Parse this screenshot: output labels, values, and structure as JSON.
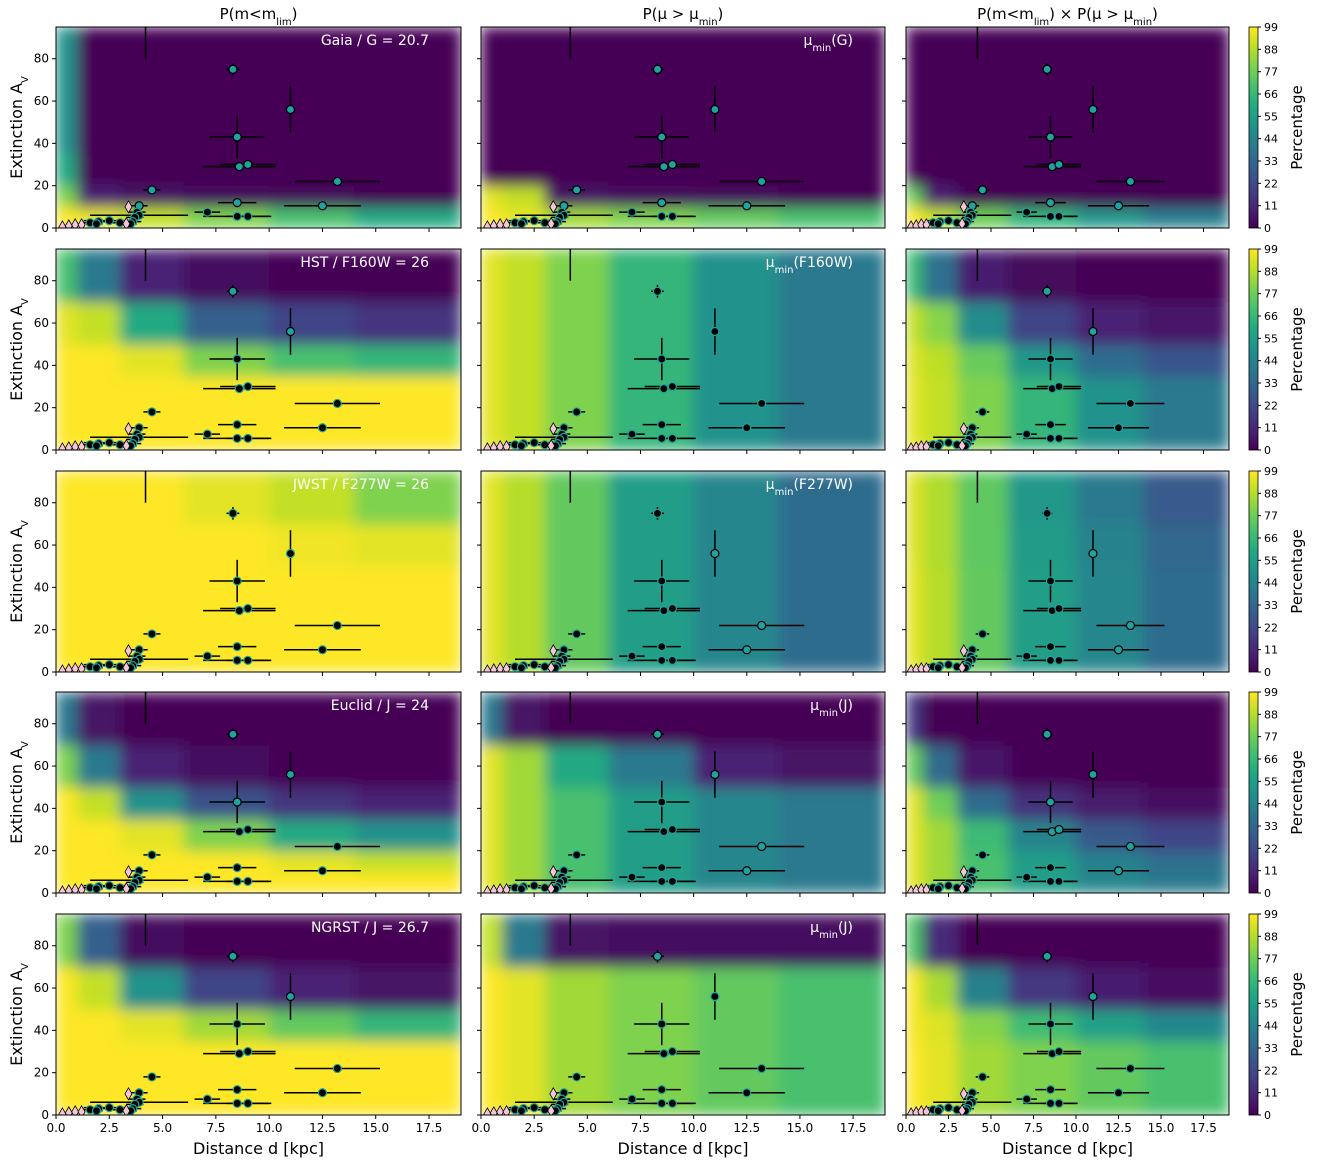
{
  "chart_data": {
    "type": "heatmap_grid",
    "column_titles": [
      [
        "P(m<m",
        "lim",
        ")"
      ],
      [
        "P(μ > μ",
        "min",
        ")"
      ],
      [
        "P(m<m",
        "lim",
        ") × P(μ > μ",
        "min",
        ")"
      ]
    ],
    "annotations": [
      [
        "Gaia / G = 20.7",
        [
          "μ",
          "min",
          "(G)"
        ]
      ],
      [
        "HST / F160W = 26",
        [
          "μ",
          "min",
          "(F160W)"
        ]
      ],
      [
        "JWST / F277W = 26",
        [
          "μ",
          "min",
          "(F277W)"
        ]
      ],
      [
        "Euclid / J = 24",
        [
          "μ",
          "min",
          "(J)"
        ]
      ],
      [
        "NGRST / J = 26.7",
        [
          "μ",
          "min",
          "(J)"
        ]
      ]
    ],
    "ylabel": [
      "Extinction A",
      "V"
    ],
    "xlabel": "Distance d [kpc]",
    "xlim": [
      0,
      19
    ],
    "ylim": [
      0,
      95
    ],
    "xticks": [
      {
        "value": 0,
        "label": "0.0"
      },
      {
        "value": 2.5,
        "label": "2.5"
      },
      {
        "value": 5,
        "label": "5.0"
      },
      {
        "value": 7.5,
        "label": "7.5"
      },
      {
        "value": 10,
        "label": "10.0"
      },
      {
        "value": 12.5,
        "label": "12.5"
      },
      {
        "value": 15,
        "label": "15.0"
      },
      {
        "value": 17.5,
        "label": "17.5"
      }
    ],
    "yticks": [
      0,
      20,
      40,
      60,
      80
    ],
    "colorbar": {
      "label": "Percentage",
      "lim": [
        0,
        99
      ],
      "ticks": [
        0,
        11,
        22,
        33,
        44,
        55,
        66,
        77,
        88,
        99
      ]
    },
    "x_edges": [
      0,
      1,
      3,
      6,
      10,
      14,
      19
    ],
    "y_edges": [
      0,
      10,
      20,
      35,
      50,
      70,
      95
    ],
    "panels": [
      [
        [
          [
            99,
            95,
            90,
            80,
            70,
            60
          ],
          [
            80,
            10,
            5,
            3,
            2,
            1
          ],
          [
            60,
            1,
            0,
            0,
            0,
            0
          ],
          [
            50,
            0,
            0,
            0,
            0,
            0
          ],
          [
            50,
            0,
            0,
            0,
            0,
            0
          ],
          [
            50,
            0,
            0,
            0,
            0,
            0
          ]
        ],
        [
          [
            99,
            95,
            85,
            80,
            75,
            70
          ],
          [
            95,
            90,
            5,
            3,
            2,
            1
          ],
          [
            0,
            0,
            0,
            0,
            0,
            0
          ],
          [
            0,
            0,
            0,
            0,
            0,
            0
          ],
          [
            0,
            0,
            0,
            0,
            0,
            0
          ],
          [
            0,
            0,
            0,
            0,
            0,
            0
          ]
        ],
        [
          [
            99,
            90,
            77,
            64,
            52,
            42
          ],
          [
            76,
            9,
            0,
            0,
            0,
            0
          ],
          [
            0,
            0,
            0,
            0,
            0,
            0
          ],
          [
            0,
            0,
            0,
            0,
            0,
            0
          ],
          [
            0,
            0,
            0,
            0,
            0,
            0
          ],
          [
            0,
            0,
            0,
            0,
            0,
            0
          ]
        ]
      ],
      [
        [
          [
            99,
            99,
            99,
            99,
            99,
            99
          ],
          [
            99,
            99,
            99,
            99,
            99,
            99
          ],
          [
            99,
            99,
            99,
            99,
            99,
            99
          ],
          [
            99,
            99,
            95,
            80,
            70,
            65
          ],
          [
            95,
            90,
            60,
            30,
            20,
            15
          ],
          [
            70,
            40,
            10,
            3,
            1,
            0
          ]
        ],
        [
          [
            95,
            90,
            80,
            65,
            50,
            40
          ],
          [
            95,
            90,
            80,
            65,
            50,
            40
          ],
          [
            95,
            90,
            80,
            65,
            50,
            40
          ],
          [
            95,
            90,
            80,
            65,
            50,
            40
          ],
          [
            95,
            90,
            80,
            65,
            50,
            40
          ],
          [
            95,
            90,
            80,
            65,
            50,
            40
          ]
        ],
        [
          [
            95,
            90,
            80,
            65,
            50,
            40
          ],
          [
            95,
            90,
            80,
            65,
            50,
            40
          ],
          [
            95,
            90,
            80,
            65,
            50,
            40
          ],
          [
            94,
            89,
            76,
            52,
            35,
            26
          ],
          [
            90,
            81,
            48,
            20,
            10,
            6
          ],
          [
            67,
            36,
            8,
            2,
            0,
            0
          ]
        ]
      ],
      [
        [
          [
            99,
            99,
            99,
            99,
            99,
            99
          ],
          [
            99,
            99,
            99,
            99,
            99,
            99
          ],
          [
            99,
            99,
            99,
            99,
            99,
            99
          ],
          [
            99,
            99,
            99,
            99,
            99,
            99
          ],
          [
            99,
            99,
            99,
            99,
            97,
            95
          ],
          [
            99,
            99,
            99,
            95,
            90,
            80
          ]
        ],
        [
          [
            95,
            88,
            75,
            55,
            45,
            35
          ],
          [
            95,
            88,
            75,
            55,
            45,
            35
          ],
          [
            95,
            88,
            75,
            55,
            45,
            35
          ],
          [
            95,
            88,
            75,
            55,
            45,
            35
          ],
          [
            95,
            88,
            75,
            55,
            45,
            35
          ],
          [
            95,
            88,
            75,
            55,
            45,
            35
          ]
        ],
        [
          [
            95,
            88,
            75,
            55,
            45,
            35
          ],
          [
            95,
            88,
            75,
            55,
            45,
            35
          ],
          [
            95,
            88,
            75,
            55,
            45,
            35
          ],
          [
            95,
            88,
            75,
            55,
            45,
            35
          ],
          [
            94,
            87,
            74,
            54,
            44,
            33
          ],
          [
            94,
            87,
            74,
            52,
            40,
            28
          ]
        ]
      ],
      [
        [
          [
            99,
            99,
            99,
            99,
            99,
            99
          ],
          [
            99,
            99,
            99,
            99,
            95,
            90
          ],
          [
            99,
            99,
            95,
            80,
            60,
            50
          ],
          [
            99,
            90,
            50,
            25,
            15,
            10
          ],
          [
            80,
            40,
            10,
            3,
            1,
            1
          ],
          [
            40,
            5,
            0,
            0,
            0,
            0
          ]
        ],
        [
          [
            95,
            85,
            70,
            55,
            45,
            40
          ],
          [
            95,
            85,
            70,
            55,
            45,
            40
          ],
          [
            95,
            85,
            70,
            55,
            45,
            40
          ],
          [
            95,
            85,
            70,
            55,
            45,
            40
          ],
          [
            95,
            85,
            60,
            40,
            10,
            5
          ],
          [
            40,
            5,
            0,
            0,
            0,
            0
          ]
        ],
        [
          [
            95,
            85,
            70,
            55,
            45,
            40
          ],
          [
            95,
            85,
            70,
            55,
            43,
            36
          ],
          [
            95,
            85,
            67,
            44,
            27,
            20
          ],
          [
            95,
            77,
            35,
            14,
            7,
            4
          ],
          [
            76,
            34,
            6,
            1,
            0,
            0
          ],
          [
            16,
            0,
            0,
            0,
            0,
            0
          ]
        ]
      ],
      [
        [
          [
            99,
            99,
            99,
            99,
            99,
            99
          ],
          [
            99,
            99,
            99,
            99,
            99,
            99
          ],
          [
            99,
            99,
            99,
            99,
            99,
            99
          ],
          [
            99,
            99,
            95,
            85,
            75,
            65
          ],
          [
            99,
            90,
            50,
            20,
            10,
            5
          ],
          [
            80,
            30,
            3,
            0,
            0,
            0
          ]
        ],
        [
          [
            99,
            95,
            85,
            80,
            75,
            70
          ],
          [
            99,
            95,
            85,
            80,
            75,
            70
          ],
          [
            99,
            95,
            85,
            80,
            75,
            70
          ],
          [
            99,
            95,
            85,
            80,
            75,
            70
          ],
          [
            99,
            95,
            85,
            80,
            75,
            70
          ],
          [
            90,
            40,
            5,
            3,
            3,
            3
          ]
        ],
        [
          [
            99,
            95,
            85,
            80,
            75,
            70
          ],
          [
            99,
            95,
            85,
            80,
            75,
            70
          ],
          [
            99,
            95,
            85,
            80,
            75,
            70
          ],
          [
            98,
            94,
            81,
            68,
            56,
            46
          ],
          [
            98,
            86,
            43,
            16,
            8,
            4
          ],
          [
            72,
            12,
            0,
            0,
            0,
            0
          ]
        ]
      ]
    ],
    "points": {
      "color": "#20a39e",
      "x": [
        8.3,
        11,
        8.5,
        8.6,
        9,
        13.2,
        4.5,
        8.5,
        12.5,
        7.1,
        8.5,
        9,
        3.9,
        3.8,
        3.9,
        3.7,
        3.6,
        3.5,
        2.5,
        2,
        1.6,
        1.9,
        3,
        4.2
      ],
      "y": [
        75,
        56,
        43,
        29,
        30,
        22,
        18,
        12,
        10.5,
        7.5,
        5.5,
        5.5,
        10.5,
        7.5,
        6,
        5,
        3,
        2,
        3.5,
        3,
        2.5,
        2,
        2.5,
        100
      ],
      "xerr": [
        0.3,
        0.2,
        1.3,
        1.7,
        1.3,
        2,
        0.4,
        0.9,
        1.8,
        0.6,
        1.6,
        1,
        0.4,
        0.4,
        2.3,
        0.4,
        0.4,
        0.3,
        1.2,
        0.4,
        0.3,
        0.3,
        0.6,
        0
      ],
      "yerr": [
        3,
        11,
        10,
        0,
        0,
        0,
        1,
        0,
        0,
        0,
        0,
        0,
        0,
        0,
        0,
        0,
        0,
        0,
        0,
        0,
        0,
        0,
        0,
        20
      ]
    },
    "diamonds": {
      "color": "#f4c6d8",
      "x": [
        0.3,
        0.6,
        0.9,
        1.2,
        3.3,
        3.4
      ],
      "y": [
        0.5,
        1,
        1.5,
        1.5,
        2,
        10
      ]
    }
  }
}
